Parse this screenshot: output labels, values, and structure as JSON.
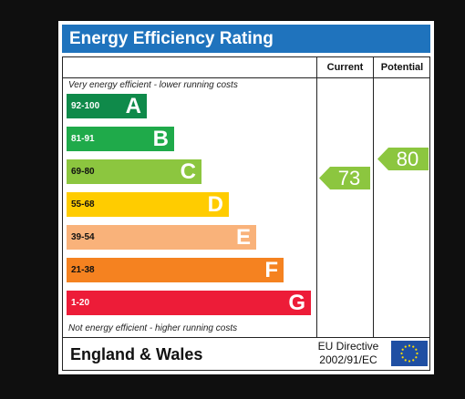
{
  "title": "Energy Efficiency Rating",
  "columns": {
    "current": "Current",
    "potential": "Potential"
  },
  "notes": {
    "top": "Very energy efficient - lower running costs",
    "bottom": "Not energy efficient - higher running costs"
  },
  "bands": [
    {
      "range": "92-100",
      "letter": "A",
      "color": "#0f8a4a"
    },
    {
      "range": "81-91",
      "letter": "B",
      "color": "#1faa4a"
    },
    {
      "range": "69-80",
      "letter": "C",
      "color": "#8cc63f"
    },
    {
      "range": "55-68",
      "letter": "D",
      "color": "#ffcc00"
    },
    {
      "range": "39-54",
      "letter": "E",
      "color": "#f9b27a"
    },
    {
      "range": "21-38",
      "letter": "F",
      "color": "#f58220"
    },
    {
      "range": "1-20",
      "letter": "G",
      "color": "#ed1c38"
    }
  ],
  "ratings": {
    "current": {
      "value": "73",
      "band": "C",
      "color": "#8cc63f"
    },
    "potential": {
      "value": "80",
      "band": "C",
      "color": "#8cc63f"
    }
  },
  "footer": {
    "region": "England & Wales",
    "directive_line1": "EU Directive",
    "directive_line2": "2002/91/EC"
  },
  "icons": {
    "flag": "eu-flag-icon"
  }
}
